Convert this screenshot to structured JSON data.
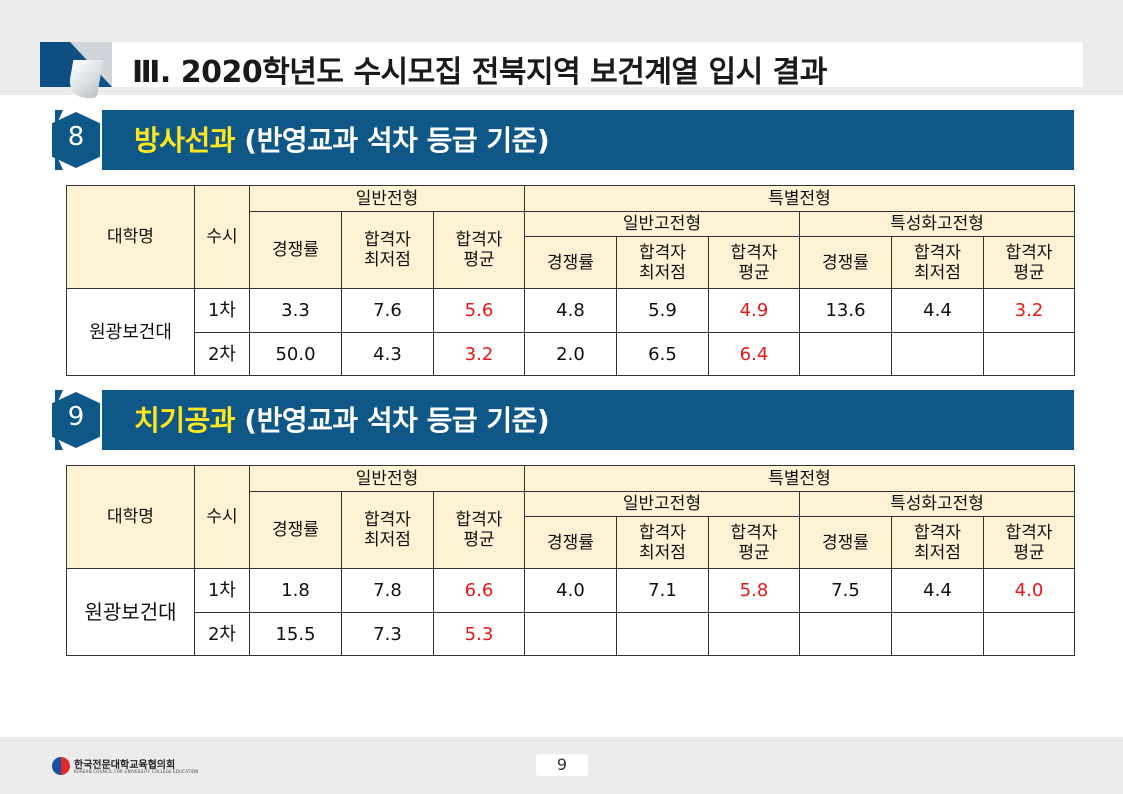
{
  "page_title": "Ⅲ. 2020학년도 수시모집 전북지역 보건계열 입시 결과",
  "sections": [
    {
      "number": "8",
      "dept": "방사선과",
      "subtitle": " (반영교과  석차 등급 기준)",
      "rows": [
        {
          "univ": "원광보건대",
          "round": "1차",
          "gen_rate": "3.3",
          "gen_min": "7.6",
          "gen_avg": "5.6",
          "sg_rate": "4.8",
          "sg_min": "5.9",
          "sg_avg": "4.9",
          "sp_rate": "13.6",
          "sp_min": "4.4",
          "sp_avg": "3.2"
        },
        {
          "univ": "",
          "round": "2차",
          "gen_rate": "50.0",
          "gen_min": "4.3",
          "gen_avg": "3.2",
          "sg_rate": "2.0",
          "sg_min": "6.5",
          "sg_avg": "6.4",
          "sp_rate": "",
          "sp_min": "",
          "sp_avg": ""
        }
      ]
    },
    {
      "number": "9",
      "dept": "치기공과",
      "subtitle": " (반영교과  석차 등급 기준)",
      "rows": [
        {
          "univ": "원광보건대",
          "round": "1차",
          "gen_rate": "1.8",
          "gen_min": "7.8",
          "gen_avg": "6.6",
          "sg_rate": "4.0",
          "sg_min": "7.1",
          "sg_avg": "5.8",
          "sp_rate": "7.5",
          "sp_min": "4.4",
          "sp_avg": "4.0"
        },
        {
          "univ": "",
          "round": "2차",
          "gen_rate": "15.5",
          "gen_min": "7.3",
          "gen_avg": "5.3",
          "sg_rate": "",
          "sg_min": "",
          "sg_avg": "",
          "sp_rate": "",
          "sp_min": "",
          "sp_avg": ""
        }
      ]
    }
  ],
  "table_header": {
    "univ": "대학명",
    "susi": "수시",
    "general": "일반전형",
    "special": "특별전형",
    "special_general": "일반고전형",
    "special_specialized": "특성화고전형",
    "rate": "경쟁률",
    "min_line1": "합격자",
    "min_line2": "최저점",
    "avg_line1": "합격자",
    "avg_line2": "평균"
  },
  "footer": {
    "org_name": "한국전문대학교육협의회",
    "org_sub": "KOREAN COUNCIL FOR UNIVERSITY COLLEGE EDUCATION",
    "page_number": "9"
  },
  "colors": {
    "section_bar": "#0e5787",
    "dept_highlight": "#ffe61f",
    "header_fill": "#fdf2d3",
    "avg_value": "#e61717"
  }
}
